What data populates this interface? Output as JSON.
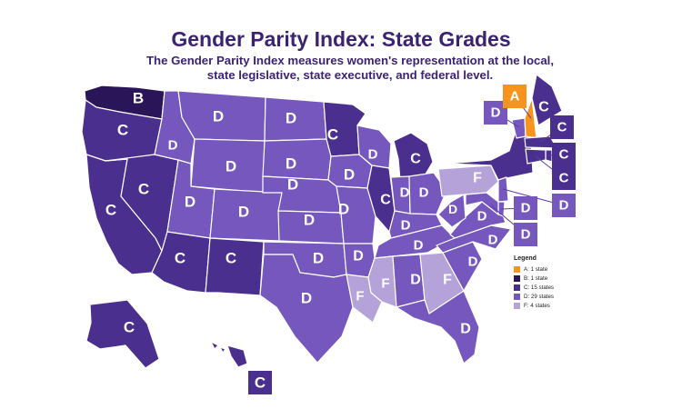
{
  "title": "Gender Parity Index: State Grades",
  "subtitle": "The Gender Parity Index measures women's representation at the local, state legislative, state executive, and federal level.",
  "colors": {
    "A": "#f7941d",
    "B": "#2a1559",
    "C": "#4b2f8f",
    "D": "#7557bd",
    "F": "#b4a2d9"
  },
  "legend": {
    "title": "Legend",
    "items": [
      {
        "grade": "A",
        "label": "A: 1 state"
      },
      {
        "grade": "B",
        "label": "B: 1 state"
      },
      {
        "grade": "C",
        "label": "C: 15 states"
      },
      {
        "grade": "D",
        "label": "D: 29 states"
      },
      {
        "grade": "F",
        "label": "F: 4 states"
      }
    ]
  },
  "states": [
    {
      "state": "WA",
      "grade": "B"
    },
    {
      "state": "OR",
      "grade": "C"
    },
    {
      "state": "CA",
      "grade": "C"
    },
    {
      "state": "NV",
      "grade": "C"
    },
    {
      "state": "ID",
      "grade": "D"
    },
    {
      "state": "MT",
      "grade": "D"
    },
    {
      "state": "WY",
      "grade": "D"
    },
    {
      "state": "UT",
      "grade": "D"
    },
    {
      "state": "CO",
      "grade": "D"
    },
    {
      "state": "AZ",
      "grade": "C"
    },
    {
      "state": "NM",
      "grade": "C"
    },
    {
      "state": "ND",
      "grade": "D"
    },
    {
      "state": "SD",
      "grade": "D"
    },
    {
      "state": "NE",
      "grade": "D"
    },
    {
      "state": "KS",
      "grade": "D"
    },
    {
      "state": "OK",
      "grade": "D"
    },
    {
      "state": "TX",
      "grade": "D"
    },
    {
      "state": "MN",
      "grade": "C"
    },
    {
      "state": "IA",
      "grade": "D"
    },
    {
      "state": "MO",
      "grade": "D"
    },
    {
      "state": "AR",
      "grade": "D"
    },
    {
      "state": "LA",
      "grade": "F"
    },
    {
      "state": "WI",
      "grade": "D"
    },
    {
      "state": "IL",
      "grade": "C"
    },
    {
      "state": "MI",
      "grade": "C"
    },
    {
      "state": "IN",
      "grade": "D"
    },
    {
      "state": "OH",
      "grade": "D"
    },
    {
      "state": "KY",
      "grade": "D"
    },
    {
      "state": "TN",
      "grade": "D"
    },
    {
      "state": "MS",
      "grade": "F"
    },
    {
      "state": "AL",
      "grade": "D"
    },
    {
      "state": "GA",
      "grade": "F"
    },
    {
      "state": "FL",
      "grade": "D"
    },
    {
      "state": "SC",
      "grade": "D"
    },
    {
      "state": "NC",
      "grade": "D"
    },
    {
      "state": "VA",
      "grade": "D"
    },
    {
      "state": "WV",
      "grade": "D"
    },
    {
      "state": "PA",
      "grade": "F"
    },
    {
      "state": "NY",
      "grade": "C"
    },
    {
      "state": "VT",
      "grade": "D"
    },
    {
      "state": "NH",
      "grade": "A"
    },
    {
      "state": "ME",
      "grade": "C"
    },
    {
      "state": "MA",
      "grade": "C"
    },
    {
      "state": "RI",
      "grade": "C"
    },
    {
      "state": "CT",
      "grade": "C"
    },
    {
      "state": "NJ",
      "grade": "D"
    },
    {
      "state": "DE",
      "grade": "D"
    },
    {
      "state": "MD",
      "grade": "D"
    },
    {
      "state": "AK",
      "grade": "C"
    },
    {
      "state": "HI",
      "grade": "C"
    }
  ]
}
